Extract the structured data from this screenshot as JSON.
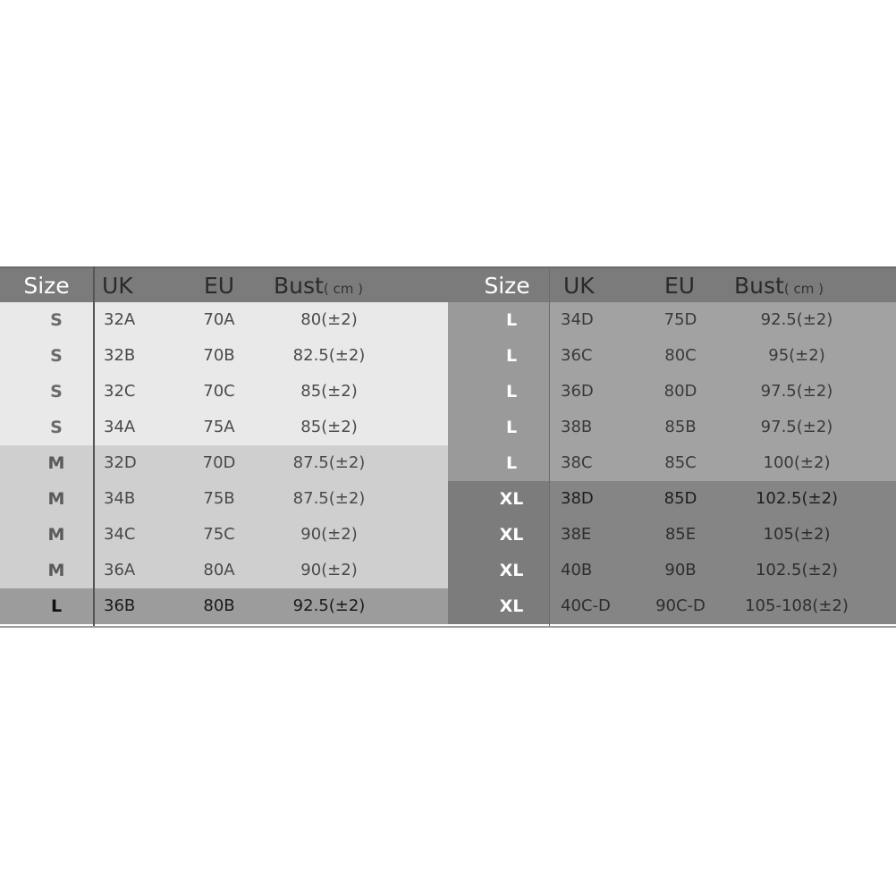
{
  "header": {
    "size": "Size",
    "uk": "UK",
    "eu": "EU",
    "bust": "Bust",
    "unit": "( cm )"
  },
  "left_table": [
    {
      "size": "S",
      "uk": "32A",
      "eu": "70A",
      "bust": "80(±2)",
      "bg": "#e9e9e9",
      "size_bg": "#e9e9e9",
      "size_color": "#6a6a6a",
      "text_color": "#4a4a4a"
    },
    {
      "size": "S",
      "uk": "32B",
      "eu": "70B",
      "bust": "82.5(±2)",
      "bg": "#e9e9e9",
      "size_bg": "#e9e9e9",
      "size_color": "#6a6a6a",
      "text_color": "#4a4a4a"
    },
    {
      "size": "S",
      "uk": "32C",
      "eu": "70C",
      "bust": "85(±2)",
      "bg": "#e9e9e9",
      "size_bg": "#e9e9e9",
      "size_color": "#6a6a6a",
      "text_color": "#4a4a4a"
    },
    {
      "size": "S",
      "uk": "34A",
      "eu": "75A",
      "bust": "85(±2)",
      "bg": "#e9e9e9",
      "size_bg": "#e9e9e9",
      "size_color": "#6a6a6a",
      "text_color": "#4a4a4a"
    },
    {
      "size": "M",
      "uk": "32D",
      "eu": "70D",
      "bust": "87.5(±2)",
      "bg": "#cfcfcf",
      "size_bg": "#cfcfcf",
      "size_color": "#5a5a5a",
      "text_color": "#4a4a4a"
    },
    {
      "size": "M",
      "uk": "34B",
      "eu": "75B",
      "bust": "87.5(±2)",
      "bg": "#cfcfcf",
      "size_bg": "#cfcfcf",
      "size_color": "#5a5a5a",
      "text_color": "#4a4a4a"
    },
    {
      "size": "M",
      "uk": "34C",
      "eu": "75C",
      "bust": "90(±2)",
      "bg": "#cfcfcf",
      "size_bg": "#cfcfcf",
      "size_color": "#5a5a5a",
      "text_color": "#4a4a4a"
    },
    {
      "size": "M",
      "uk": "36A",
      "eu": "80A",
      "bust": "90(±2)",
      "bg": "#cfcfcf",
      "size_bg": "#cfcfcf",
      "size_color": "#5a5a5a",
      "text_color": "#4a4a4a"
    },
    {
      "size": "L",
      "uk": "36B",
      "eu": "80B",
      "bust": "92.5(±2)",
      "bg": "#9c9c9c",
      "size_bg": "#9c9c9c",
      "size_color": "#111111",
      "text_color": "#1a1a1a"
    }
  ],
  "right_table": [
    {
      "size": "L",
      "uk": "34D",
      "eu": "75D",
      "bust": "92.5(±2)",
      "bg": "#a2a2a2",
      "size_bg": "#9a9a9a",
      "size_color": "#ffffff",
      "text_color": "#3a3a3a"
    },
    {
      "size": "L",
      "uk": "36C",
      "eu": "80C",
      "bust": "95(±2)",
      "bg": "#a2a2a2",
      "size_bg": "#9a9a9a",
      "size_color": "#ffffff",
      "text_color": "#3a3a3a"
    },
    {
      "size": "L",
      "uk": "36D",
      "eu": "80D",
      "bust": "97.5(±2)",
      "bg": "#a2a2a2",
      "size_bg": "#9a9a9a",
      "size_color": "#ffffff",
      "text_color": "#3a3a3a"
    },
    {
      "size": "L",
      "uk": "38B",
      "eu": "85B",
      "bust": "97.5(±2)",
      "bg": "#a2a2a2",
      "size_bg": "#9a9a9a",
      "size_color": "#ffffff",
      "text_color": "#3a3a3a"
    },
    {
      "size": "L",
      "uk": "38C",
      "eu": "85C",
      "bust": "100(±2)",
      "bg": "#a2a2a2",
      "size_bg": "#9a9a9a",
      "size_color": "#ffffff",
      "text_color": "#3a3a3a"
    },
    {
      "size": "XL",
      "uk": "38D",
      "eu": "85D",
      "bust": "102.5(±2)",
      "bg": "#858585",
      "size_bg": "#7c7c7c",
      "size_color": "#ffffff",
      "text_color": "#1e1e1e"
    },
    {
      "size": "XL",
      "uk": "38E",
      "eu": "85E",
      "bust": "105(±2)",
      "bg": "#858585",
      "size_bg": "#7c7c7c",
      "size_color": "#ffffff",
      "text_color": "#2e2e2e"
    },
    {
      "size": "XL",
      "uk": "40B",
      "eu": "90B",
      "bust": "102.5(±2)",
      "bg": "#858585",
      "size_bg": "#7c7c7c",
      "size_color": "#ffffff",
      "text_color": "#2e2e2e"
    },
    {
      "size": "XL",
      "uk": "40C-D",
      "eu": "90C-D",
      "bust": "105-108(±2)",
      "bg": "#858585",
      "size_bg": "#7c7c7c",
      "size_color": "#ffffff",
      "text_color": "#2e2e2e"
    }
  ]
}
